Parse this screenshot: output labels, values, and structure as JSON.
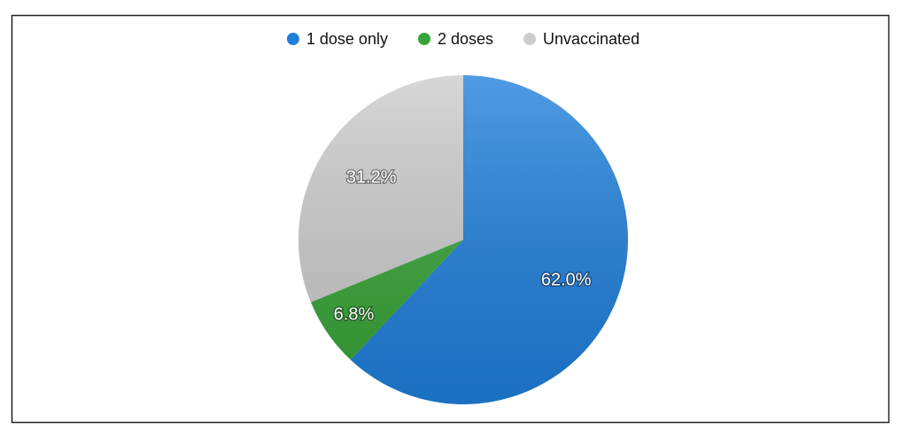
{
  "chart_data": {
    "type": "pie",
    "categories": [
      "1 dose only",
      "2 doses",
      "Unvaccinated"
    ],
    "values": [
      62.0,
      6.8,
      31.2
    ],
    "value_labels": [
      "62.0%",
      "6.8%",
      "31.2%"
    ],
    "colors": [
      "#1f7fdc",
      "#36a436",
      "#cccccc"
    ],
    "legend": "top"
  }
}
